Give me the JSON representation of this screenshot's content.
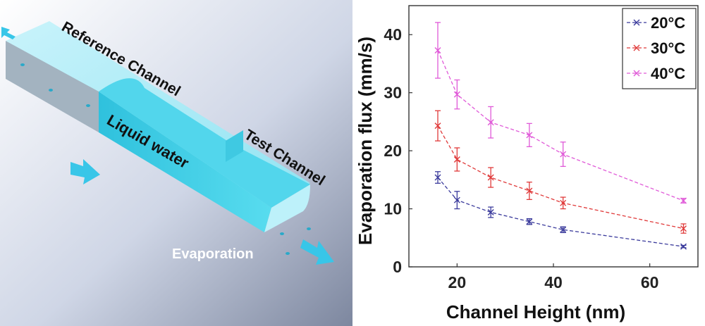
{
  "illustration": {
    "labels": {
      "reference_channel": "Reference Channel",
      "test_channel": "Test Channel",
      "liquid_water": "Liquid water",
      "evaporation": "Evaporation"
    },
    "colors": {
      "water": "#33d0e8",
      "wall": "#a9d6e6",
      "arrow": "#38c6e8"
    }
  },
  "chart_data": {
    "type": "line",
    "xlabel": "Channel Height (nm)",
    "ylabel": "Evaporation flux (mm/s)",
    "xlim": [
      10,
      70
    ],
    "ylim": [
      0,
      45
    ],
    "xticks": [
      20,
      40,
      60
    ],
    "yticks": [
      0,
      10,
      20,
      30,
      40
    ],
    "grid": false,
    "legend_position": "top-right",
    "x": [
      16,
      20,
      27,
      35,
      42,
      67
    ],
    "series": [
      {
        "name": "20°C",
        "color": "#3b3b9c",
        "marker": "x",
        "values": [
          15.4,
          11.5,
          9.4,
          7.8,
          6.4,
          3.5
        ],
        "errors": [
          1.0,
          1.5,
          0.9,
          0.5,
          0.5,
          0.2
        ]
      },
      {
        "name": "30°C",
        "color": "#e03a3a",
        "marker": "x",
        "values": [
          24.3,
          18.5,
          15.4,
          13.1,
          11.0,
          6.6
        ],
        "errors": [
          2.6,
          2.0,
          1.7,
          1.5,
          1.0,
          0.8
        ]
      },
      {
        "name": "40°C",
        "color": "#e05ad8",
        "marker": "x",
        "values": [
          37.3,
          29.7,
          24.9,
          22.7,
          19.4,
          11.4
        ],
        "errors": [
          4.8,
          2.5,
          2.7,
          2.0,
          2.1,
          0.4
        ]
      }
    ]
  }
}
